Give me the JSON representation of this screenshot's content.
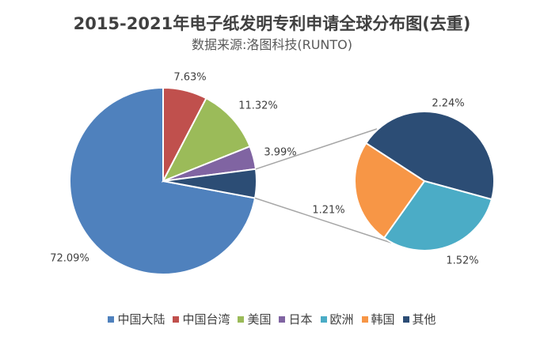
{
  "chart_data": {
    "type": "pie",
    "subtype": "pie-of-pie",
    "title": "2015-2021年电子纸发明专利申请全球分布图(去重)",
    "subtitle": "数据来源:洛图科技(RUNTO)",
    "slices": [
      {
        "name": "中国大陆",
        "value": 72.09,
        "label": "72.09%",
        "color": "#4F81BD"
      },
      {
        "name": "中国台湾",
        "value": 7.63,
        "label": "7.63%",
        "color": "#C0504D"
      },
      {
        "name": "美国",
        "value": 11.32,
        "label": "11.32%",
        "color": "#9BBB59"
      },
      {
        "name": "日本",
        "value": 3.99,
        "label": "3.99%",
        "color": "#8064A2"
      },
      {
        "name": "欧洲",
        "value": 1.52,
        "label": "1.52%",
        "color": "#4BACC6"
      },
      {
        "name": "韩国",
        "value": 1.21,
        "label": "1.21%",
        "color": "#F79646"
      },
      {
        "name": "其他",
        "value": 2.24,
        "label": "2.24%",
        "color": "#2C4D75"
      }
    ],
    "secondary_group": [
      "欧洲",
      "韩国",
      "其他"
    ],
    "legend_position": "bottom"
  }
}
